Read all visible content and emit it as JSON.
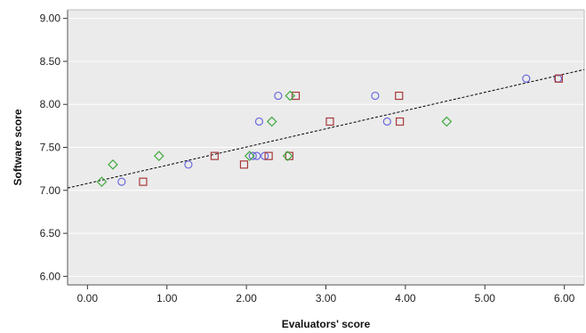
{
  "chart_data": {
    "type": "scatter",
    "title": "",
    "xlabel": "Evaluators' score",
    "ylabel": "Software score",
    "xlim": [
      -0.25,
      6.25
    ],
    "ylim": [
      5.9,
      9.1
    ],
    "xticks": [
      0,
      1,
      2,
      3,
      4,
      5,
      6
    ],
    "xtick_labels": [
      "0.00",
      "1.00",
      "2.00",
      "3.00",
      "4.00",
      "5.00",
      "6.00"
    ],
    "yticks": [
      6.0,
      6.5,
      7.0,
      7.5,
      8.0,
      8.5,
      9.0
    ],
    "ytick_labels": [
      "6.00",
      "6.50",
      "7.00",
      "7.50",
      "8.00",
      "8.50",
      "9.00"
    ],
    "grid": "horizontal",
    "legend": "none",
    "plot_background": "#ebebeb",
    "series": [
      {
        "marker": "circle",
        "color": "#6b6bdc",
        "x": [
          0.43,
          1.27,
          2.08,
          2.13,
          2.16,
          2.23,
          2.4,
          3.62,
          3.77,
          5.52,
          5.92
        ],
        "y": [
          7.1,
          7.3,
          7.4,
          7.4,
          7.8,
          7.4,
          8.1,
          8.1,
          7.8,
          8.3,
          8.3
        ]
      },
      {
        "marker": "square",
        "color": "#a83a3a",
        "x": [
          0.7,
          1.6,
          1.97,
          2.28,
          2.54,
          2.62,
          3.05,
          3.92,
          3.93,
          5.93
        ],
        "y": [
          7.1,
          7.4,
          7.3,
          7.4,
          7.4,
          8.1,
          7.8,
          8.1,
          7.8,
          8.3
        ]
      },
      {
        "marker": "diamond",
        "color": "#3faa3f",
        "x": [
          0.18,
          0.32,
          0.9,
          2.04,
          2.32,
          2.52,
          2.55,
          4.52
        ],
        "y": [
          7.1,
          7.3,
          7.4,
          7.4,
          7.8,
          7.4,
          8.1,
          7.8
        ]
      }
    ],
    "fit_line": {
      "style": "dashed",
      "color": "#000000",
      "intercept": 7.08,
      "slope": 0.212
    }
  }
}
